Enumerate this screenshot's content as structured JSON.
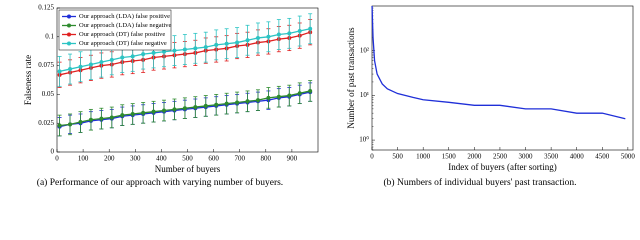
{
  "chart_data": [
    {
      "type": "line",
      "caption": "(a)  Performance of our approach with varying number of buyers.",
      "xlabel": "Number of buyers",
      "ylabel": "Falseness rate",
      "xlim": [
        0,
        1000
      ],
      "xticks": [
        0,
        100,
        200,
        300,
        400,
        500,
        600,
        700,
        800,
        900
      ],
      "ylim": [
        0,
        0.125
      ],
      "yticks": [
        0,
        0.025,
        0.05,
        0.075,
        0.1,
        0.125
      ],
      "legend": "upper left",
      "marker": "circle",
      "x": [
        10,
        50,
        90,
        130,
        170,
        210,
        250,
        290,
        330,
        370,
        410,
        450,
        490,
        530,
        570,
        610,
        650,
        690,
        730,
        770,
        810,
        850,
        890,
        930,
        970
      ],
      "series": [
        {
          "name": "Our approach (LDA) false positive",
          "color": "#1f2fd8",
          "values": [
            0.022,
            0.024,
            0.025,
            0.027,
            0.028,
            0.029,
            0.031,
            0.032,
            0.033,
            0.034,
            0.035,
            0.036,
            0.037,
            0.038,
            0.039,
            0.04,
            0.041,
            0.042,
            0.043,
            0.044,
            0.045,
            0.047,
            0.048,
            0.05,
            0.052
          ],
          "errors": [
            0.008,
            0.008,
            0.008,
            0.008,
            0.008,
            0.008,
            0.008,
            0.008,
            0.008,
            0.008,
            0.008,
            0.008,
            0.008,
            0.008,
            0.008,
            0.008,
            0.008,
            0.008,
            0.008,
            0.008,
            0.008,
            0.008,
            0.008,
            0.008,
            0.008
          ]
        },
        {
          "name": "Our approach (LDA) false negative",
          "color": "#2e8b2e",
          "values": [
            0.023,
            0.024,
            0.026,
            0.028,
            0.029,
            0.03,
            0.032,
            0.033,
            0.034,
            0.035,
            0.036,
            0.037,
            0.038,
            0.039,
            0.04,
            0.041,
            0.042,
            0.043,
            0.044,
            0.045,
            0.047,
            0.048,
            0.049,
            0.051,
            0.053
          ],
          "errors": [
            0.009,
            0.009,
            0.009,
            0.009,
            0.009,
            0.009,
            0.009,
            0.009,
            0.009,
            0.009,
            0.009,
            0.009,
            0.009,
            0.009,
            0.009,
            0.009,
            0.009,
            0.009,
            0.009,
            0.009,
            0.009,
            0.009,
            0.009,
            0.009,
            0.009
          ]
        },
        {
          "name": "Our approach (DT) false positive",
          "color": "#e02020",
          "values": [
            0.067,
            0.069,
            0.071,
            0.073,
            0.075,
            0.076,
            0.078,
            0.079,
            0.08,
            0.082,
            0.083,
            0.084,
            0.085,
            0.086,
            0.088,
            0.089,
            0.09,
            0.092,
            0.093,
            0.095,
            0.096,
            0.098,
            0.099,
            0.101,
            0.104
          ],
          "errors": [
            0.011,
            0.011,
            0.011,
            0.011,
            0.011,
            0.011,
            0.011,
            0.011,
            0.011,
            0.011,
            0.011,
            0.011,
            0.011,
            0.011,
            0.011,
            0.011,
            0.011,
            0.011,
            0.011,
            0.011,
            0.011,
            0.011,
            0.011,
            0.011,
            0.011
          ]
        },
        {
          "name": "Our approach (DT) false negative",
          "color": "#2cc4c4",
          "values": [
            0.07,
            0.072,
            0.074,
            0.076,
            0.078,
            0.08,
            0.082,
            0.083,
            0.085,
            0.086,
            0.087,
            0.088,
            0.089,
            0.09,
            0.091,
            0.093,
            0.094,
            0.095,
            0.097,
            0.099,
            0.1,
            0.102,
            0.103,
            0.105,
            0.107
          ],
          "errors": [
            0.013,
            0.013,
            0.013,
            0.013,
            0.013,
            0.013,
            0.013,
            0.013,
            0.013,
            0.013,
            0.013,
            0.013,
            0.013,
            0.013,
            0.013,
            0.013,
            0.013,
            0.013,
            0.013,
            0.013,
            0.013,
            0.013,
            0.013,
            0.013,
            0.013
          ]
        }
      ]
    },
    {
      "type": "line",
      "caption": "(b)  Numbers of individual buyers' past transaction.",
      "xlabel": "Index of buyers (after sorting)",
      "ylabel": "Number of past transactions",
      "xlim": [
        0,
        5100
      ],
      "xticks": [
        0,
        500,
        1000,
        1500,
        2000,
        2500,
        3000,
        3500,
        4000,
        4500,
        5000
      ],
      "ylim": [
        0.6,
        1000
      ],
      "log_y": true,
      "yticks": [
        {
          "value": 1,
          "label": "10⁰"
        },
        {
          "value": 10,
          "label": "10¹"
        },
        {
          "value": 100,
          "label": "10²"
        }
      ],
      "x": [
        1,
        20,
        50,
        100,
        200,
        300,
        500,
        800,
        1000,
        1500,
        2000,
        2500,
        3000,
        3500,
        4000,
        4500,
        4950
      ],
      "series": [
        {
          "name": null,
          "color": "#1f2fd8",
          "values": [
            1000,
            200,
            60,
            30,
            18,
            14,
            11,
            9,
            8,
            7,
            6,
            6,
            5,
            5,
            4,
            4,
            3
          ]
        }
      ]
    }
  ]
}
